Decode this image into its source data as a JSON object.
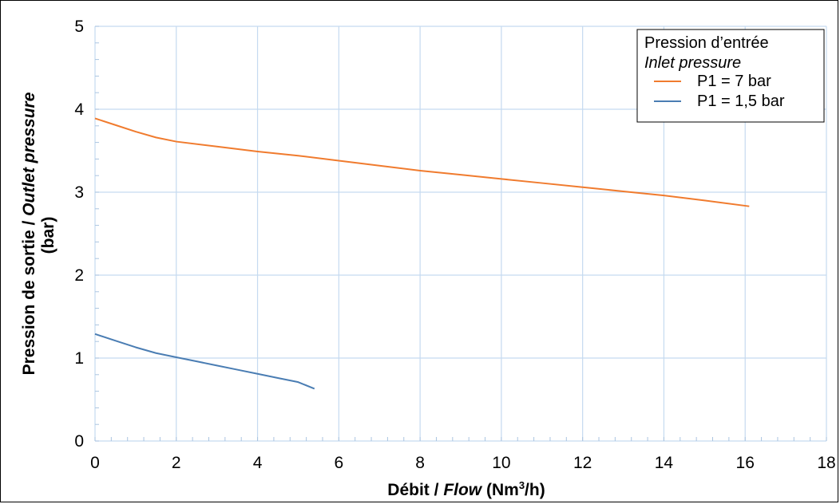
{
  "chart_data": {
    "type": "line",
    "xlabel_parts": [
      "Débit / ",
      "Flow",
      " (Nm",
      "3",
      "/h)"
    ],
    "ylabel_line1_parts": [
      "Pression de sortie / ",
      "Outlet pressure"
    ],
    "ylabel_line2": "(bar)",
    "xlim": [
      0,
      18
    ],
    "ylim": [
      0,
      5
    ],
    "x_ticks": [
      0,
      2,
      4,
      6,
      8,
      10,
      12,
      14,
      16,
      18
    ],
    "y_ticks": [
      0,
      1,
      2,
      3,
      4,
      5
    ],
    "grid": true,
    "legend": {
      "placement": "top-right",
      "title": "Pression d’entrée",
      "subtitle": "Inlet pressure"
    },
    "series": [
      {
        "name": "P1 = 7 bar",
        "color": "#f07b2e",
        "x": [
          0,
          0.5,
          1,
          1.5,
          2,
          3,
          4,
          5,
          6,
          7,
          8,
          9,
          10,
          11,
          12,
          13,
          14,
          15,
          16.1
        ],
        "y": [
          3.89,
          3.81,
          3.73,
          3.66,
          3.61,
          3.55,
          3.49,
          3.44,
          3.38,
          3.32,
          3.26,
          3.21,
          3.16,
          3.11,
          3.06,
          3.01,
          2.96,
          2.9,
          2.83
        ]
      },
      {
        "name": "P1 = 1,5 bar",
        "color": "#4a7db3",
        "x": [
          0,
          0.5,
          1,
          1.5,
          2,
          2.5,
          3,
          3.5,
          4,
          4.5,
          5,
          5.4
        ],
        "y": [
          1.29,
          1.21,
          1.13,
          1.06,
          1.01,
          0.96,
          0.91,
          0.86,
          0.81,
          0.76,
          0.71,
          0.63
        ]
      }
    ]
  }
}
